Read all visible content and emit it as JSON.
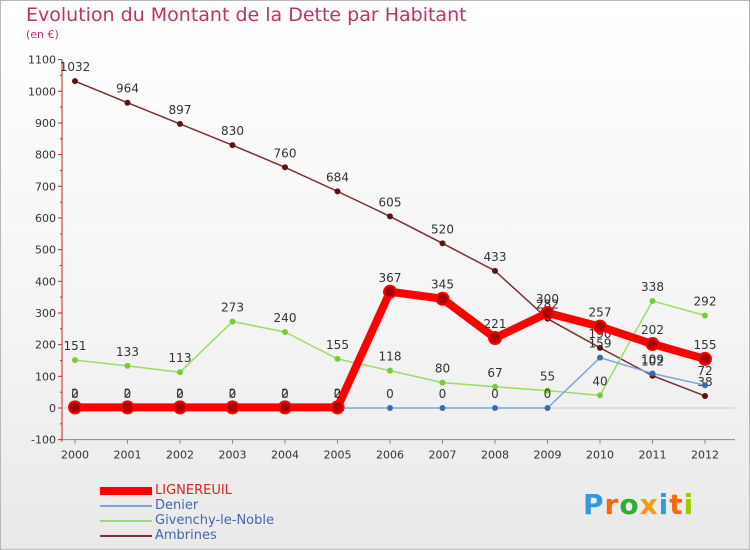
{
  "chart_data": {
    "type": "line",
    "title": "Evolution du Montant de la Dette par Habitant",
    "subtitle": "(en €)",
    "categories": [
      "2000",
      "2001",
      "2002",
      "2003",
      "2004",
      "2005",
      "2006",
      "2007",
      "2008",
      "2009",
      "2010",
      "2011",
      "2012"
    ],
    "ylim": [
      -100,
      1100
    ],
    "yticks": [
      -100,
      0,
      100,
      200,
      300,
      400,
      500,
      600,
      700,
      800,
      900,
      1000,
      1100
    ],
    "grid": false,
    "legend_position": "bottom-left",
    "series": [
      {
        "name": "LIGNEREUIL",
        "color": "#ff0000",
        "marker": "#a80000",
        "values": [
          2,
          2,
          2,
          2,
          2,
          2,
          367,
          345,
          221,
          300,
          257,
          202,
          155
        ]
      },
      {
        "name": "Denier",
        "color": "#7ba7d8",
        "marker": "#3b6ea8",
        "values": [
          0,
          0,
          0,
          0,
          0,
          0,
          0,
          0,
          0,
          0,
          159,
          109,
          72
        ]
      },
      {
        "name": "Givenchy-le-Noble",
        "color": "#99dd66",
        "marker": "#77cc33",
        "values": [
          151,
          133,
          113,
          273,
          240,
          155,
          118,
          80,
          67,
          55,
          40,
          338,
          292
        ]
      },
      {
        "name": "Ambrines",
        "color": "#7a3030",
        "marker": "#5a1515",
        "values": [
          1032,
          964,
          897,
          830,
          760,
          684,
          605,
          520,
          433,
          282,
          190,
          102,
          38
        ]
      }
    ]
  },
  "logo": {
    "letters": [
      "P",
      "r",
      "o",
      "x",
      "i",
      "t",
      "i"
    ],
    "colors": [
      "#3399dd",
      "#ff6600",
      "#33aa33",
      "#ff9900",
      "#3399dd",
      "#ff6600",
      "#99cc00"
    ]
  }
}
